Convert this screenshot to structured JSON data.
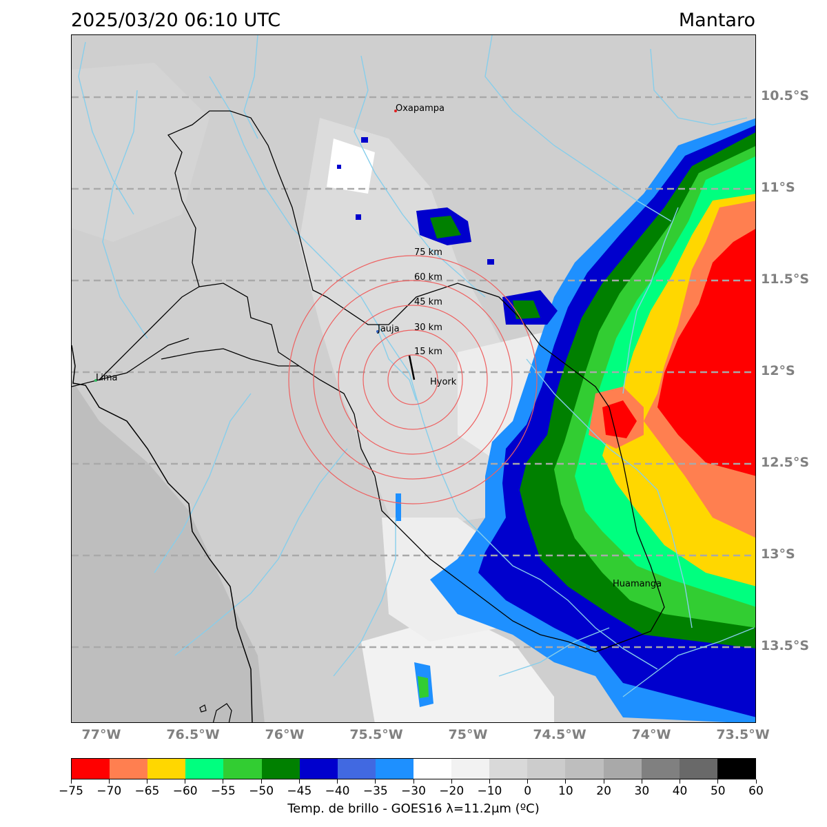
{
  "header": {
    "datetime": "2025/03/20 06:10 UTC",
    "region": "Mantaro"
  },
  "map": {
    "lat_labels": [
      "10.5°S",
      "11°S",
      "11.5°S",
      "12°S",
      "12.5°S",
      "13°S",
      "13.5°S"
    ],
    "lon_labels": [
      "77°W",
      "76.5°W",
      "76°W",
      "75.5°W",
      "75°W",
      "74.5°W",
      "74°W",
      "73.5°W"
    ],
    "cities": [
      {
        "name": "Oxapampa",
        "color": "#e02020"
      },
      {
        "name": "Jauja",
        "color": "#3060c0"
      },
      {
        "name": "Hyork",
        "color": "#000000"
      },
      {
        "name": "Lima",
        "color": "#30c060"
      },
      {
        "name": "Huamanga",
        "color": "#000000"
      }
    ],
    "range_rings": [
      "15 km",
      "30 km",
      "45 km",
      "60 km",
      "75 km"
    ],
    "ring_color": "#ee6060",
    "river_color": "#87ceeb",
    "gridline_color": "#a9a9a9"
  },
  "colorbar": {
    "caption": "Temp. de brillo - GOES16 λ=11.2μm (ºC)",
    "ticks": [
      "−75",
      "−70",
      "−65",
      "−60",
      "−55",
      "−50",
      "−45",
      "−40",
      "−35",
      "−30",
      "−20",
      "−10",
      "0",
      "10",
      "20",
      "30",
      "40",
      "50",
      "60"
    ],
    "colors": [
      "#ff0000",
      "#ff7f50",
      "#ffd700",
      "#00ff7f",
      "#32cd32",
      "#008000",
      "#0000cd",
      "#4169e1",
      "#1e90ff",
      "#ffffff",
      "#f2f2f2",
      "#d9d9d9",
      "#cccccc",
      "#bebebe",
      "#a9a9a9",
      "#808080",
      "#696969",
      "#000000"
    ]
  }
}
